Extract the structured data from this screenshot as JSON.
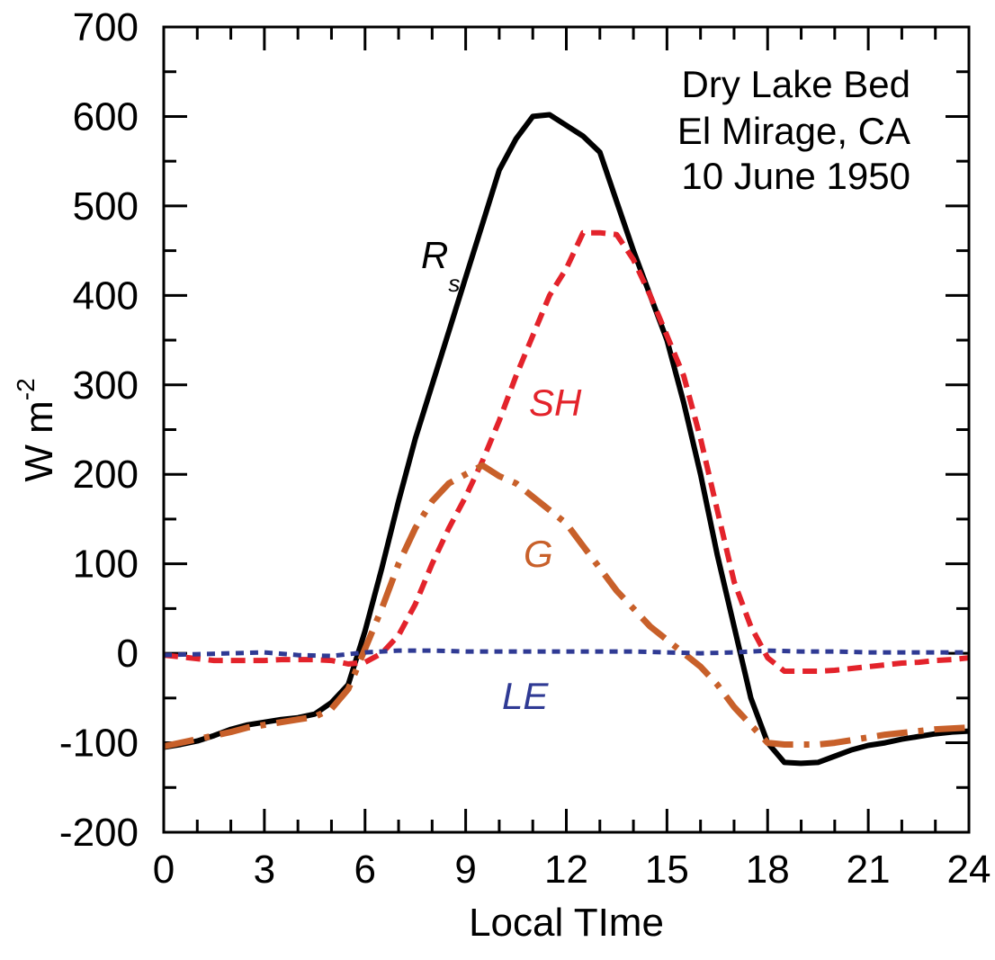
{
  "chart_data": {
    "type": "line",
    "title": "",
    "xlabel": "Local TIme",
    "ylabel": "W m",
    "ylabel_superscript": "-2",
    "xlim": [
      0,
      24
    ],
    "ylim": [
      -200,
      700
    ],
    "xticks": [
      0,
      3,
      6,
      9,
      12,
      15,
      18,
      21,
      24
    ],
    "xtick_labels": [
      "0",
      "3",
      "6",
      "9",
      "12",
      "15",
      "18",
      "21",
      "24"
    ],
    "yticks": [
      -200,
      -100,
      0,
      100,
      200,
      300,
      400,
      500,
      600,
      700
    ],
    "ytick_labels": [
      "-200",
      "-100",
      "0",
      "100",
      "200",
      "300",
      "400",
      "500",
      "600",
      "700"
    ],
    "x_minor_step": 1,
    "y_minor_step": 50,
    "grid": false,
    "annotation": [
      "Dry Lake Bed",
      "El Mirage, CA",
      "10 June 1950"
    ],
    "series": [
      {
        "name": "R",
        "name_subscript": "s",
        "color": "#000000",
        "style": "solid",
        "x": [
          0,
          0.5,
          1,
          1.5,
          2,
          2.5,
          3,
          3.5,
          4,
          4.5,
          5,
          5.5,
          6,
          6.5,
          7,
          7.5,
          8,
          8.5,
          9,
          9.5,
          10,
          10.5,
          11,
          11.5,
          12,
          12.5,
          13,
          13.5,
          14,
          14.5,
          15,
          15.5,
          16,
          16.5,
          17,
          17.5,
          18,
          18.5,
          19,
          19.5,
          20,
          20.5,
          21,
          21.5,
          22,
          22.5,
          23,
          23.5,
          24
        ],
        "y": [
          -105,
          -102,
          -98,
          -92,
          -85,
          -80,
          -77,
          -74,
          -72,
          -68,
          -55,
          -35,
          25,
          95,
          170,
          240,
          300,
          360,
          420,
          480,
          540,
          575,
          600,
          602,
          590,
          578,
          560,
          505,
          450,
          400,
          350,
          280,
          200,
          110,
          30,
          -50,
          -100,
          -122,
          -123,
          -122,
          -115,
          -108,
          -103,
          -100,
          -96,
          -93,
          -90,
          -88,
          -87
        ]
      },
      {
        "name": "SH",
        "color": "#e3232b",
        "style": "dashed",
        "x": [
          0,
          0.5,
          1,
          1.5,
          2,
          2.5,
          3,
          3.5,
          4,
          4.5,
          5,
          5.5,
          6,
          6.5,
          7,
          7.5,
          8,
          8.5,
          9,
          9.5,
          10,
          10.5,
          11,
          11.5,
          12,
          12.5,
          13,
          13.5,
          14,
          14.5,
          15,
          15.5,
          16,
          16.5,
          17,
          17.5,
          18,
          18.5,
          19,
          19.5,
          20,
          20.5,
          21,
          21.5,
          22,
          22.5,
          23,
          23.5,
          24
        ],
        "y": [
          -2,
          -4,
          -6,
          -8,
          -8,
          -8,
          -8,
          -7,
          -7,
          -7,
          -8,
          -12,
          -10,
          0,
          20,
          55,
          100,
          140,
          175,
          215,
          260,
          310,
          355,
          400,
          430,
          470,
          470,
          468,
          440,
          400,
          355,
          310,
          240,
          160,
          80,
          30,
          -5,
          -20,
          -20,
          -20,
          -19,
          -17,
          -15,
          -13,
          -11,
          -10,
          -8,
          -7,
          -5
        ]
      },
      {
        "name": "G",
        "color": "#c8602a",
        "style": "dashdot",
        "x": [
          0,
          0.5,
          1,
          1.5,
          2,
          2.5,
          3,
          3.5,
          4,
          4.5,
          5,
          5.5,
          6,
          6.5,
          7,
          7.5,
          8,
          8.5,
          9,
          9.5,
          10,
          10.5,
          11,
          11.5,
          12,
          12.5,
          13,
          13.5,
          14,
          14.5,
          15,
          15.5,
          16,
          16.5,
          17,
          17.5,
          18,
          18.5,
          19,
          19.5,
          20,
          20.5,
          21,
          21.5,
          22,
          22.5,
          23,
          23.5,
          24
        ],
        "y": [
          -104,
          -100,
          -96,
          -92,
          -88,
          -83,
          -80,
          -77,
          -74,
          -71,
          -62,
          -40,
          5,
          50,
          100,
          140,
          170,
          190,
          200,
          210,
          198,
          190,
          175,
          160,
          145,
          120,
          95,
          70,
          50,
          30,
          15,
          0,
          -15,
          -35,
          -60,
          -80,
          -100,
          -102,
          -102,
          -102,
          -100,
          -97,
          -94,
          -91,
          -89,
          -87,
          -85,
          -84,
          -83
        ]
      },
      {
        "name": "LE",
        "color": "#2f3a94",
        "style": "dotted",
        "x": [
          0,
          1,
          2,
          3,
          4,
          5,
          6,
          7,
          8,
          9,
          10,
          11,
          12,
          13,
          14,
          15,
          16,
          17,
          18,
          19,
          20,
          21,
          22,
          23,
          24
        ],
        "y": [
          -2,
          -1,
          0,
          1,
          -2,
          -3,
          1,
          3,
          3,
          2,
          2,
          2,
          2,
          2,
          2,
          1,
          0,
          1,
          3,
          2,
          2,
          1,
          1,
          1,
          1
        ]
      }
    ]
  }
}
